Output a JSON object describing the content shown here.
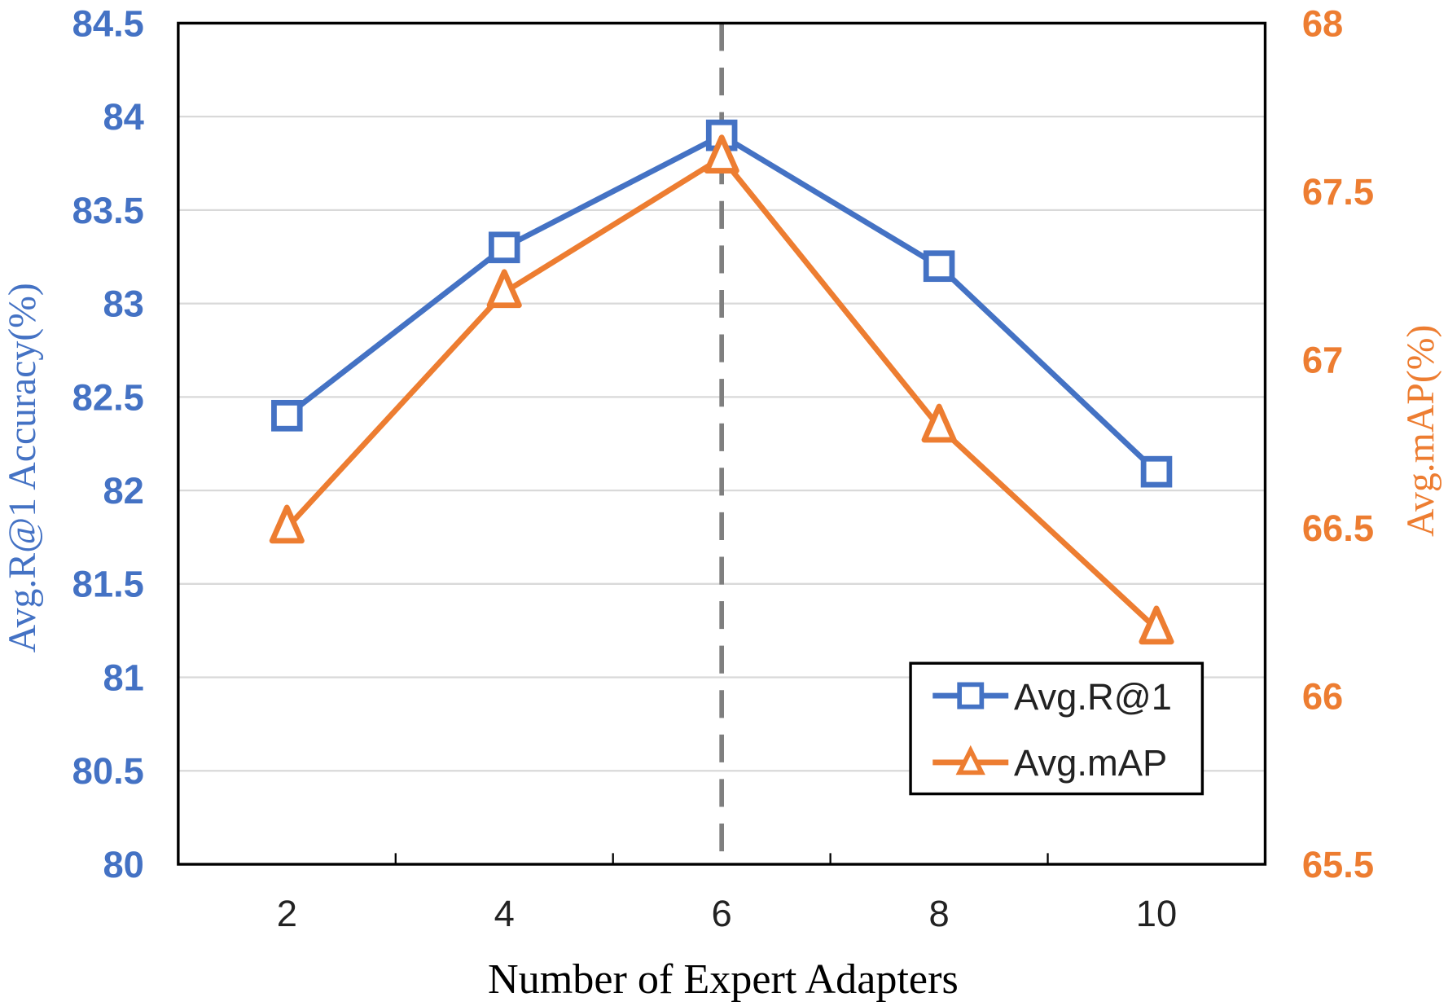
{
  "chart_data": {
    "type": "line",
    "xlabel": "Number of Expert Adapters",
    "ylabel": "Avg.R@1 Accuracy(%)",
    "y2label": "Avg.mAP(%)",
    "categories": [
      "2",
      "4",
      "6",
      "8",
      "10"
    ],
    "ylim": [
      80,
      84.5
    ],
    "y2lim": [
      65.5,
      68
    ],
    "yticks": [
      "80",
      "80.5",
      "81",
      "81.5",
      "82",
      "82.5",
      "83",
      "83.5",
      "84",
      "84.5"
    ],
    "y2ticks": [
      "65.5",
      "66",
      "66.5",
      "67",
      "67.5",
      "68"
    ],
    "highlight_category": "6",
    "legend_position": "bottom-right",
    "grid": true,
    "series": [
      {
        "name": "Avg.R@1",
        "axis": "left",
        "marker": "square",
        "color": "#4472C4",
        "values": [
          82.4,
          83.3,
          83.9,
          83.2,
          82.1
        ]
      },
      {
        "name": "Avg.mAP",
        "axis": "right",
        "marker": "triangle",
        "color": "#ED7D31",
        "values": [
          66.5,
          67.2,
          67.6,
          66.8,
          66.2
        ]
      }
    ]
  }
}
